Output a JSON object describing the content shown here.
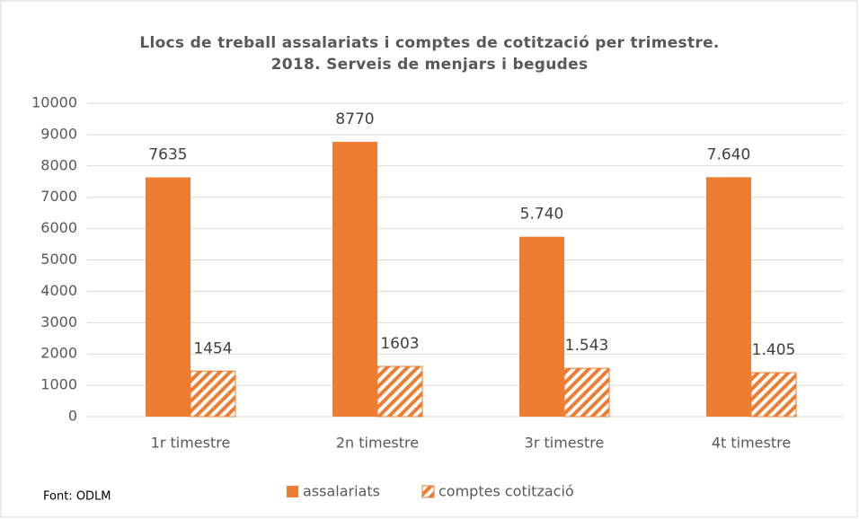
{
  "chart_data": {
    "type": "bar",
    "title": "Llocs de treball assalariats i comptes de cotització per trimestre. 2018. Serveis de menjars i begudes",
    "categories": [
      "1r timestre",
      "2n timestre",
      "3r timestre",
      "4t timestre"
    ],
    "series": [
      {
        "name": "assalariats",
        "color": "#ed7d31",
        "pattern": "solid",
        "values": [
          7635,
          8770,
          5740,
          7640
        ],
        "value_labels": [
          "7635",
          "8770",
          "5.740",
          "7.640"
        ]
      },
      {
        "name": "comptes cotització",
        "color": "#ed7d31",
        "pattern": "hatch",
        "values": [
          1454,
          1603,
          1543,
          1405
        ],
        "value_labels": [
          "1454",
          "1603",
          "1.543",
          "1.405"
        ]
      }
    ],
    "ylim": [
      0,
      10000
    ],
    "yticks": [
      0,
      1000,
      2000,
      3000,
      4000,
      5000,
      6000,
      7000,
      8000,
      9000,
      10000
    ],
    "grid": true,
    "legend": "bottom",
    "source": "Font:  ODLM"
  }
}
